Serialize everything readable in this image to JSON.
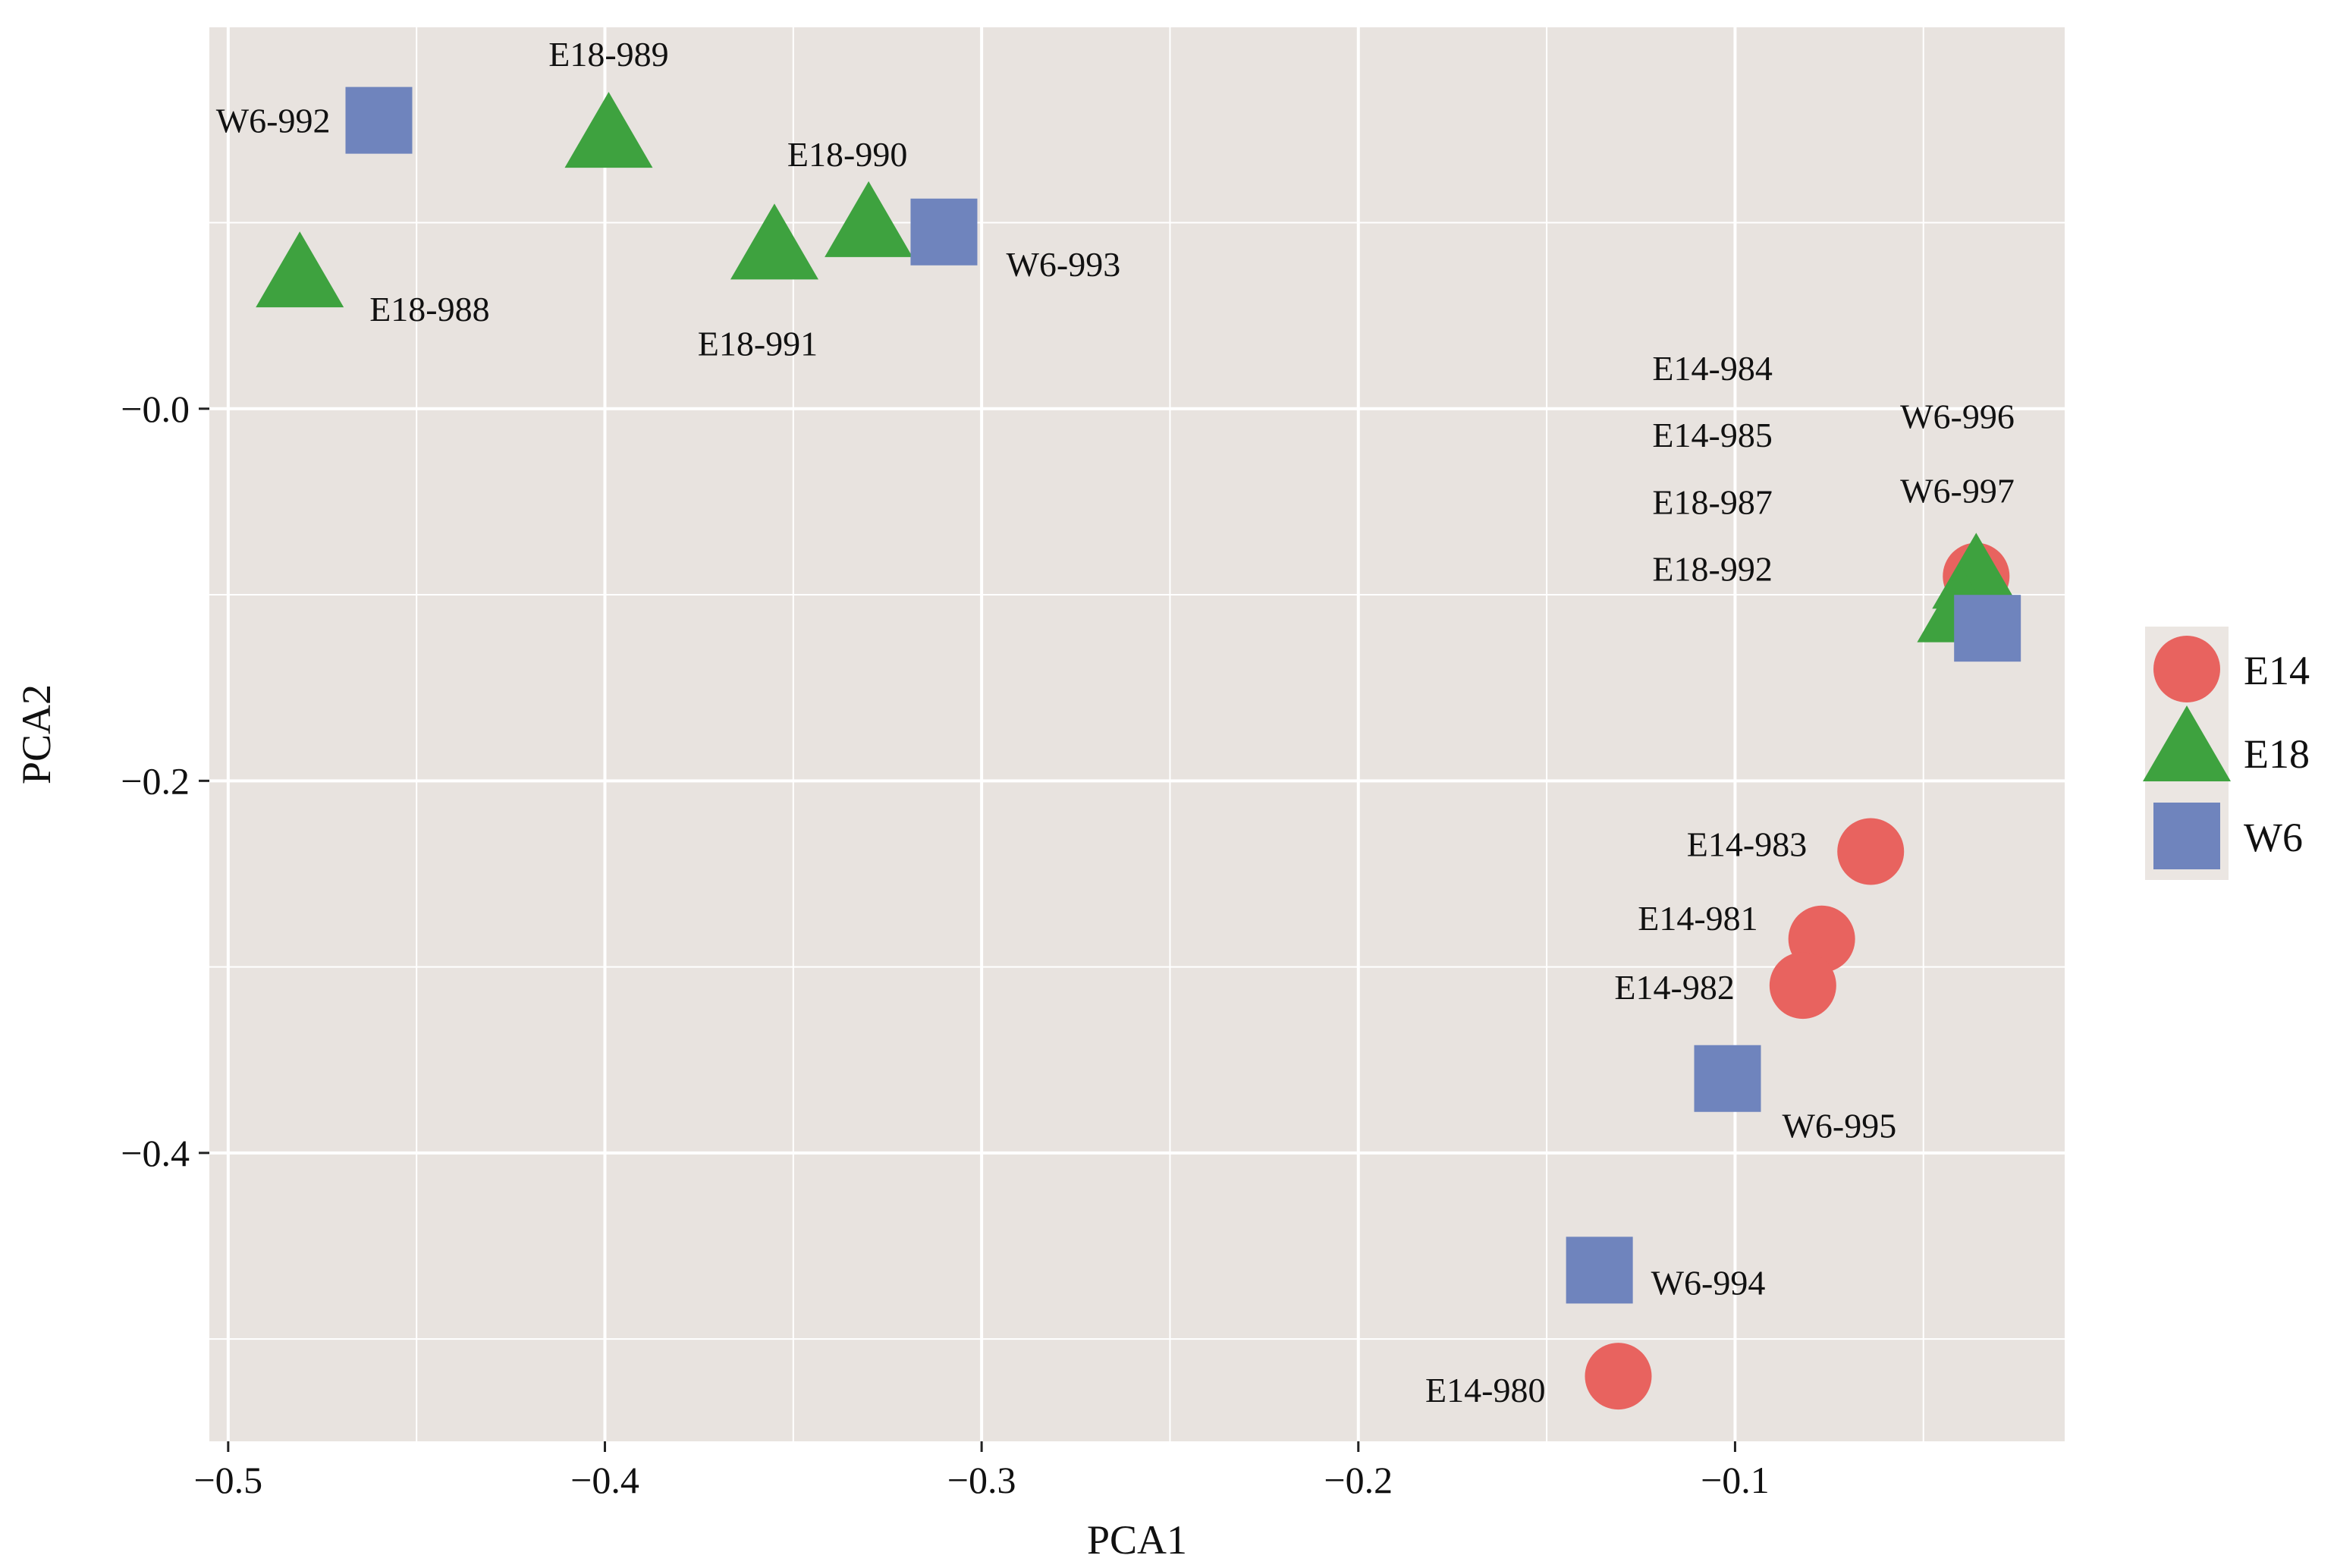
{
  "chart_data": {
    "type": "scatter",
    "title": "",
    "xlabel": "PCA1",
    "ylabel": "PCA2",
    "xlim": [
      -0.505,
      -0.0125
    ],
    "ylim": [
      -0.555,
      0.205
    ],
    "xticks": [
      -0.5,
      -0.4,
      -0.3,
      -0.2,
      -0.1
    ],
    "xtick_labels": [
      "−0.5",
      "−0.4",
      "−0.3",
      "−0.2",
      "−0.1"
    ],
    "yticks": [
      0.0,
      -0.2,
      -0.4
    ],
    "ytick_labels": [
      "−0.0",
      "−0.2",
      "−0.4"
    ],
    "grid": true,
    "legend_position": "right",
    "colors": {
      "E14": "#e8635f",
      "E18": "#3ea23f",
      "W6": "#6f84bd",
      "panel": "#e8e3df",
      "grid": "#ffffff"
    },
    "series": [
      {
        "name": "E14",
        "marker": "circle",
        "points": [
          {
            "x": -0.131,
            "y": -0.52,
            "label": "E14-980"
          },
          {
            "x": -0.077,
            "y": -0.285,
            "label": "E14-981"
          },
          {
            "x": -0.082,
            "y": -0.31,
            "label": "E14-982"
          },
          {
            "x": -0.064,
            "y": -0.238,
            "label": "E14-983"
          },
          {
            "x": -0.036,
            "y": -0.09,
            "label": ""
          }
        ]
      },
      {
        "name": "E18",
        "marker": "triangle",
        "points": [
          {
            "x": -0.481,
            "y": 0.07,
            "label": "E18-988"
          },
          {
            "x": -0.399,
            "y": 0.145,
            "label": "E18-989"
          },
          {
            "x": -0.33,
            "y": 0.097,
            "label": "E18-990"
          },
          {
            "x": -0.355,
            "y": 0.085,
            "label": "E18-991"
          },
          {
            "x": -0.036,
            "y": -0.092,
            "label": ""
          },
          {
            "x": -0.04,
            "y": -0.11,
            "label": ""
          }
        ]
      },
      {
        "name": "W6",
        "marker": "square",
        "points": [
          {
            "x": -0.46,
            "y": 0.155,
            "label": "W6-992"
          },
          {
            "x": -0.31,
            "y": 0.095,
            "label": "W6-993"
          },
          {
            "x": -0.136,
            "y": -0.463,
            "label": "W6-994"
          },
          {
            "x": -0.102,
            "y": -0.36,
            "label": "W6-995"
          },
          {
            "x": -0.033,
            "y": -0.118,
            "label": ""
          }
        ]
      }
    ],
    "annotations": [
      {
        "text": "E14-984",
        "x": -0.106,
        "y": 0.022
      },
      {
        "text": "E14-985",
        "x": -0.106,
        "y": -0.014
      },
      {
        "text": "E18-987",
        "x": -0.106,
        "y": -0.05
      },
      {
        "text": "E18-992",
        "x": -0.106,
        "y": -0.086
      },
      {
        "text": "W6-996",
        "x": -0.041,
        "y": -0.004
      },
      {
        "text": "W6-997",
        "x": -0.041,
        "y": -0.044
      }
    ]
  }
}
